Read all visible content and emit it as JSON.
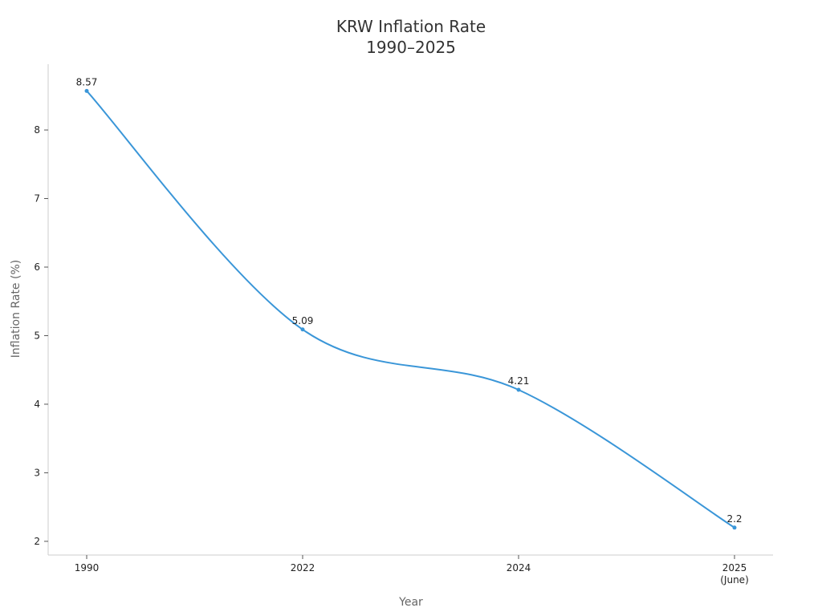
{
  "chart_data": {
    "type": "line",
    "title": "KRW Inflation Rate",
    "subtitle": "1990–2025",
    "x_label": "Year",
    "y_label": "Inflation Rate (%)",
    "categories": [
      "1990",
      "2022",
      "2024",
      "2025\n(June)"
    ],
    "values": [
      8.57,
      5.09,
      4.21,
      2.2
    ],
    "color": "#3a96d8",
    "ylim": [
      1.8,
      8.96
    ],
    "yticks": [
      2,
      3,
      4,
      5,
      6,
      7,
      8
    ],
    "grid": false,
    "smooth": true
  }
}
